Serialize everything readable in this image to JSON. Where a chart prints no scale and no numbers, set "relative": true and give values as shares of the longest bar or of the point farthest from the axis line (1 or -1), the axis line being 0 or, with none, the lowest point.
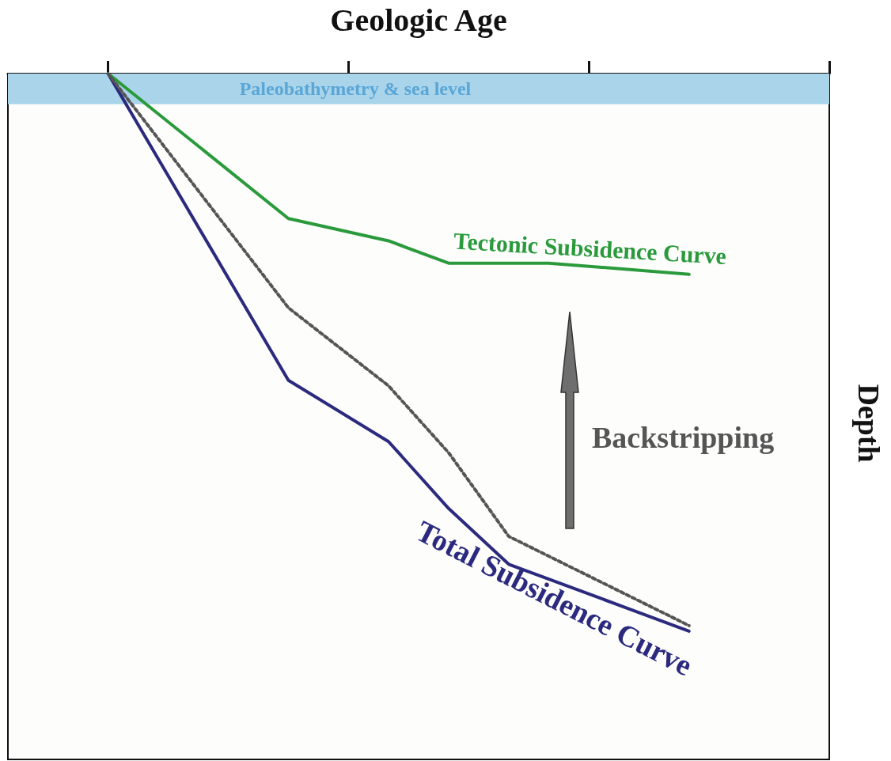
{
  "chart_data": {
    "type": "line",
    "relative": true,
    "xlabel": "Geologic Age",
    "ylabel": "Depth",
    "categories": [
      null,
      null,
      null,
      null,
      null,
      null,
      null,
      null,
      null,
      null,
      null,
      null,
      null,
      null,
      null,
      null,
      null,
      null,
      null,
      null,
      null,
      null,
      null,
      null,
      null,
      null,
      null,
      null,
      null,
      null,
      null,
      null,
      null,
      null,
      null,
      null,
      null,
      null,
      null,
      null,
      null,
      null
    ],
    "series": [
      {
        "name": "Tectonic Subsidence Curve",
        "color": "#2a9a3c",
        "line_style": "solid",
        "values": [
          null,
          null,
          null,
          null,
          null,
          0,
          null,
          null,
          null,
          null,
          null,
          null,
          null,
          null,
          -0.26,
          null,
          null,
          null,
          null,
          -0.3,
          null,
          null,
          -0.34,
          null,
          -0.34,
          null,
          null,
          -0.34,
          null,
          null,
          null,
          null,
          null,
          null,
          -0.36,
          null,
          null,
          null,
          null,
          null,
          null,
          null
        ]
      },
      {
        "name": "Total Subsidence Curve",
        "color": "#2b2a7e",
        "line_style": "solid",
        "values": [
          null,
          null,
          null,
          null,
          null,
          0,
          null,
          null,
          null,
          null,
          null,
          null,
          null,
          null,
          -0.55,
          null,
          null,
          null,
          null,
          -0.66,
          null,
          null,
          -0.78,
          null,
          null,
          -0.88,
          null,
          null,
          null,
          null,
          null,
          null,
          null,
          null,
          -1,
          null,
          null,
          null,
          null,
          null,
          null,
          null
        ]
      },
      {
        "color": "#555555",
        "line_style": "dotted",
        "values": [
          null,
          null,
          null,
          null,
          null,
          0,
          null,
          null,
          null,
          null,
          null,
          null,
          null,
          null,
          -0.42,
          null,
          null,
          null,
          null,
          -0.56,
          null,
          null,
          -0.68,
          null,
          null,
          -0.83,
          null,
          null,
          null,
          null,
          null,
          null,
          null,
          null,
          -0.99,
          null,
          null,
          null,
          null,
          null,
          null,
          null
        ]
      }
    ],
    "bands": [
      {
        "axis": "y",
        "from": 0,
        "to": -0.055,
        "label": "Paleobathymetry & sea level",
        "color": "#a9d4ea"
      }
    ],
    "annotations": [
      "Backstripping"
    ],
    "marker": "none",
    "grid": false,
    "legend": false
  }
}
